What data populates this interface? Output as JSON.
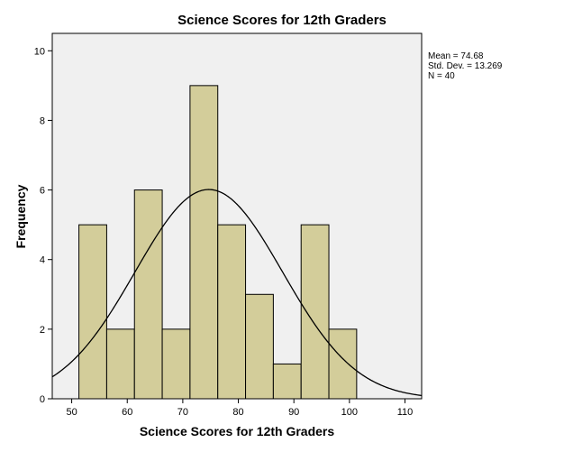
{
  "chart_data": {
    "type": "bar",
    "title": "Science Scores for 12th Graders",
    "xlabel": "Science Scores for 12th Graders",
    "ylabel": "Frequency",
    "xlim": [
      46.5,
      113
    ],
    "ylim": [
      0,
      10.5
    ],
    "x_ticks": [
      50,
      60,
      70,
      80,
      90,
      100,
      110
    ],
    "y_ticks": [
      0,
      2,
      4,
      6,
      8,
      10
    ],
    "bins": [
      {
        "start": 51.3,
        "end": 56.3,
        "count": 5
      },
      {
        "start": 56.3,
        "end": 61.3,
        "count": 2
      },
      {
        "start": 61.3,
        "end": 66.3,
        "count": 6
      },
      {
        "start": 66.3,
        "end": 71.3,
        "count": 2
      },
      {
        "start": 71.3,
        "end": 76.3,
        "count": 9
      },
      {
        "start": 76.3,
        "end": 81.3,
        "count": 5
      },
      {
        "start": 81.3,
        "end": 86.3,
        "count": 3
      },
      {
        "start": 86.3,
        "end": 91.3,
        "count": 1
      },
      {
        "start": 91.3,
        "end": 96.3,
        "count": 5
      },
      {
        "start": 96.3,
        "end": 101.3,
        "count": 2
      }
    ],
    "normal_curve": {
      "mean": 74.68,
      "sd": 13.269,
      "n": 40,
      "bin_width": 5
    },
    "stats_lines": [
      "Mean = 74.68",
      "Std. Dev. = 13.269",
      "N = 40"
    ],
    "colors": {
      "bar_fill": "#d3cd9a",
      "bar_stroke": "#000000",
      "plot_bg": "#f0f0f0",
      "curve": "#000000"
    }
  }
}
